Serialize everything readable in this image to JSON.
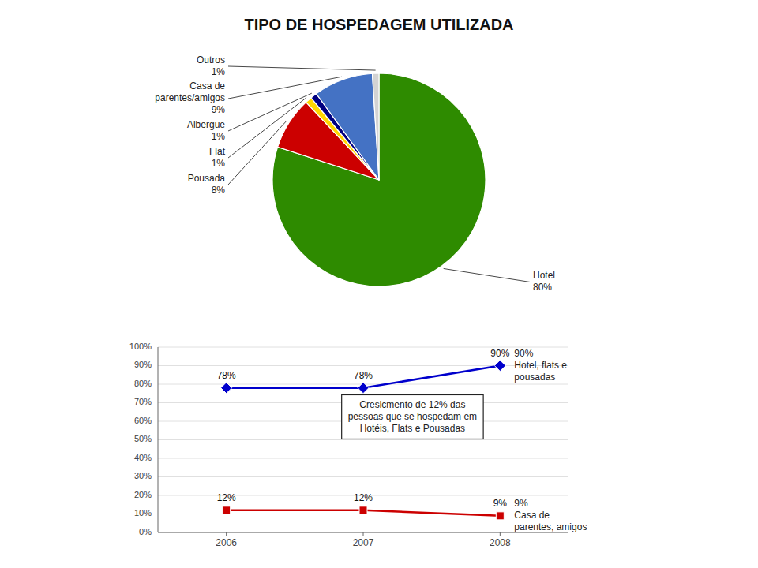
{
  "chart_data": [
    {
      "type": "pie",
      "title": "TIPO DE HOSPEDAGEM UTILIZADA",
      "categories": [
        "Hotel",
        "Pousada",
        "Flat",
        "Albergue",
        "Casa de\nparentes/amigos",
        "Outros"
      ],
      "values": [
        80,
        8,
        1,
        1,
        9,
        1
      ],
      "value_labels": [
        "80%",
        "8%",
        "1%",
        "1%",
        "9%",
        "1%"
      ],
      "colors": [
        "#2E8B00",
        "#CC0000",
        "#FFD700",
        "#000080",
        "#4472C4",
        "#D3D3D3"
      ],
      "data_labels": true
    },
    {
      "type": "line",
      "x": [
        2006,
        2007,
        2008
      ],
      "xlim": [
        2005.5,
        2008.5
      ],
      "xticks": [
        2006,
        2007,
        2008
      ],
      "ylim": [
        0,
        100
      ],
      "yticks": [
        {
          "value": 0,
          "label": "0%"
        },
        {
          "value": 10,
          "label": "10%"
        },
        {
          "value": 20,
          "label": "20%"
        },
        {
          "value": 30,
          "label": "30%"
        },
        {
          "value": 40,
          "label": "40%"
        },
        {
          "value": 50,
          "label": "50%"
        },
        {
          "value": 60,
          "label": "60%"
        },
        {
          "value": 70,
          "label": "70%"
        },
        {
          "value": 80,
          "label": "80%"
        },
        {
          "value": 90,
          "label": "90%"
        },
        {
          "value": 100,
          "label": "100%"
        }
      ],
      "grid": true,
      "data_labels": true,
      "series": [
        {
          "color": "#0000CC",
          "marker": "diamond",
          "values": [
            78,
            78,
            90
          ],
          "value_labels": [
            "78%",
            "78%",
            "90%"
          ]
        },
        {
          "color": "#CC0000",
          "marker": "square",
          "values": [
            12,
            12,
            9
          ],
          "value_labels": [
            "12%",
            "12%",
            "9%"
          ]
        }
      ],
      "annotations": [
        "90%\nHotel, flats e\npousadas",
        "9%\nCasa de\nparentes, amigos",
        "Cresicmento de 12% das\npessoas que se hospedam em\nHotéis, Flats e Pousadas"
      ]
    }
  ]
}
